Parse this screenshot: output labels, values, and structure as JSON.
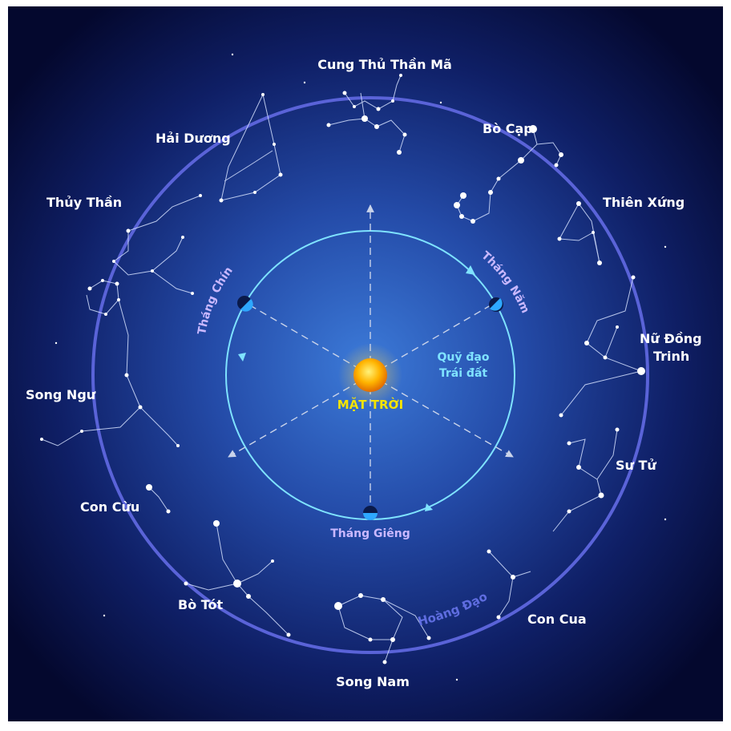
{
  "constellations": [
    {
      "id": "sagittarius",
      "label": "Cung Thủ Thần Mã"
    },
    {
      "id": "scorpius",
      "label": "Bò Cạp"
    },
    {
      "id": "libra",
      "label": "Thiên Xứng"
    },
    {
      "id": "virgo",
      "label": "Nữ Đồng Trinh"
    },
    {
      "id": "leo",
      "label": "Sư Tử"
    },
    {
      "id": "cancer",
      "label": "Con Cua"
    },
    {
      "id": "gemini",
      "label": "Song Nam"
    },
    {
      "id": "taurus",
      "label": "Bò Tót"
    },
    {
      "id": "aries",
      "label": "Con Cừu"
    },
    {
      "id": "pisces",
      "label": "Song Ngư"
    },
    {
      "id": "aquarius",
      "label": "Thủy Thần"
    },
    {
      "id": "capricornus",
      "label": "Hải Dương"
    }
  ],
  "sun": {
    "label": "MẶT TRỜI",
    "color": "#f5a800"
  },
  "orbit": {
    "label_line1": "Quỹ đạo",
    "label_line2": "Trái đất",
    "color": "#7fe3ff"
  },
  "months": {
    "january": "Tháng Giêng",
    "may": "Tháng Năm",
    "september": "Tháng Chín"
  },
  "ecliptic": {
    "label": "Hoàng Đạo",
    "color": "#5f6de0"
  },
  "colors": {
    "background_center": "#3a6fcf",
    "background_edge": "#050a35",
    "month_text": "#c9b8ff"
  }
}
